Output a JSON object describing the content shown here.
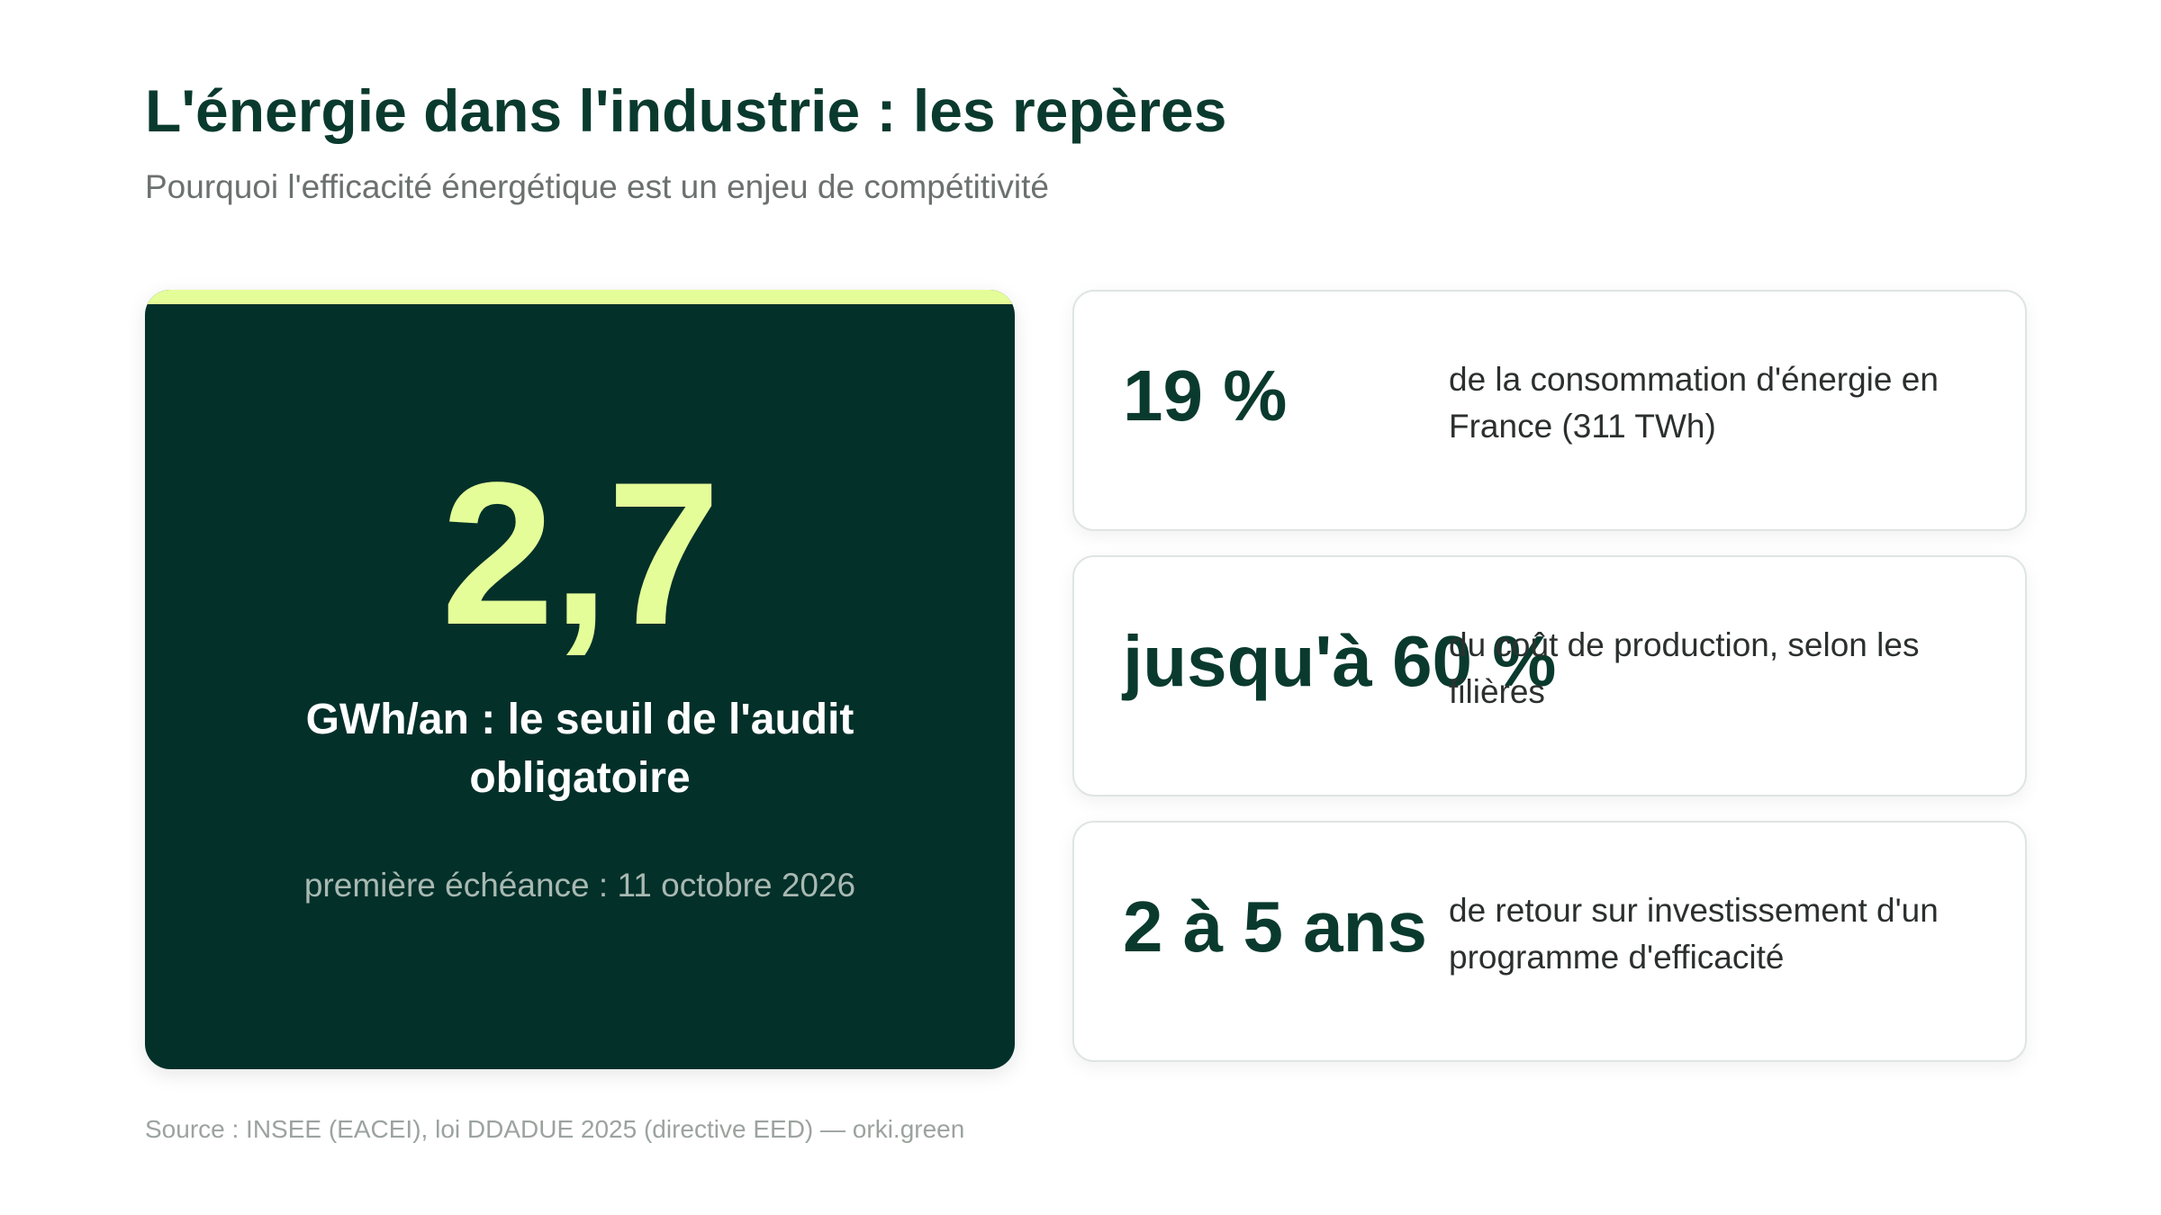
{
  "header": {
    "title": "L'énergie dans l'industrie : les repères",
    "subtitle": "Pourquoi l'efficacité énergétique est un enjeu de compétitivité"
  },
  "hero": {
    "value": "2,7",
    "label": "GWh/an : le seuil de l'audit obligatoire",
    "note": "première échéance : 11 octobre 2026"
  },
  "stats": [
    {
      "value": "19 %",
      "description": "de la consommation d'énergie en France (311 TWh)"
    },
    {
      "value": "jusqu'à 60 %",
      "description": "du coût de production, selon les filières"
    },
    {
      "value": "2 à 5 ans",
      "description": "de retour sur investissement d'un programme d'efficacité"
    }
  ],
  "footer": {
    "source": "Source : INSEE (EACEI), loi DDADUE 2025 (directive EED) — orki.green"
  },
  "colors": {
    "primary_dark": "#04302a",
    "accent_lime": "#e4fd98",
    "heading": "#0a3a2e"
  }
}
